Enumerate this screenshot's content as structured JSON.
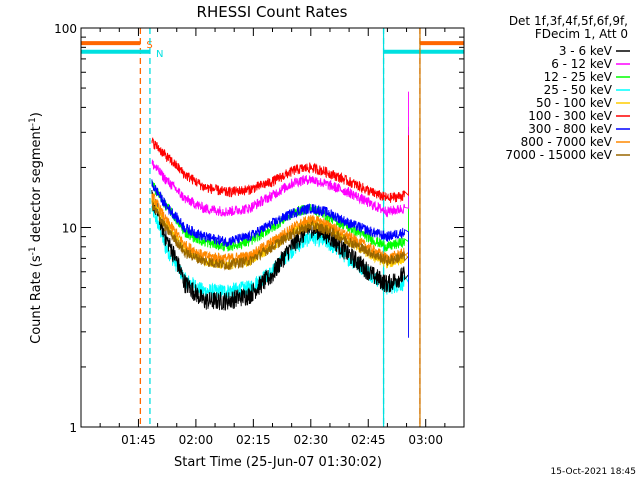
{
  "chart_data": {
    "type": "line",
    "title": "RHESSI Count Rates",
    "xlabel": "Start Time (25-Jun-07 01:30:02)",
    "ylabel_main": "Count Rate (s",
    "ylabel_sup1": "-1",
    "ylabel_mid": " detector segment",
    "ylabel_sup2": "-1",
    "ylabel_end": ")",
    "yscale": "log",
    "ylim": [
      1,
      100
    ],
    "xlim_minutes": [
      0,
      100
    ],
    "x_ticks": [
      {
        "minute": 15,
        "label": "01:45"
      },
      {
        "minute": 30,
        "label": "02:00"
      },
      {
        "minute": 45,
        "label": "02:15"
      },
      {
        "minute": 60,
        "label": "02:30"
      },
      {
        "minute": 75,
        "label": "02:45"
      },
      {
        "minute": 90,
        "label": "03:00"
      }
    ],
    "y_ticks": [
      {
        "value": 1,
        "label": "1"
      },
      {
        "value": 10,
        "label": "10"
      },
      {
        "value": 100,
        "label": "100"
      }
    ],
    "legend_header": [
      "Det 1f,3f,4f,5f,6f,9f,",
      "FDecim 1, Att 0"
    ],
    "legend_position": "right",
    "series": [
      {
        "name": "3 - 6 keV",
        "color": "#000000",
        "x": [
          18.5,
          22,
          27,
          32,
          38,
          44,
          50,
          56,
          60,
          64,
          70,
          76,
          80,
          84.5
        ],
        "values": [
          14.0,
          9.0,
          5.3,
          4.3,
          4.3,
          4.6,
          5.8,
          8.5,
          10.0,
          9.3,
          7.3,
          5.8,
          5.2,
          5.8
        ]
      },
      {
        "name": "6 - 12 keV",
        "color": "#ff00ff",
        "x": [
          18.5,
          22,
          27,
          32,
          38,
          44,
          50,
          56,
          60,
          64,
          70,
          76,
          80,
          84.5
        ],
        "values": [
          21.0,
          17.5,
          14.0,
          12.5,
          12.0,
          12.5,
          14.5,
          17.0,
          17.5,
          16.5,
          15.0,
          13.0,
          12.0,
          12.5
        ]
      },
      {
        "name": "12 - 25 keV",
        "color": "#00ff00",
        "x": [
          18.5,
          22,
          27,
          32,
          38,
          44,
          50,
          56,
          60,
          64,
          70,
          76,
          80,
          84.5
        ],
        "values": [
          16.5,
          13.0,
          9.5,
          8.5,
          8.0,
          8.5,
          10.0,
          12.0,
          12.5,
          11.5,
          10.0,
          8.7,
          8.0,
          8.5
        ]
      },
      {
        "name": "25 - 50 keV",
        "color": "#00ffff",
        "x": [
          18.5,
          22,
          27,
          32,
          38,
          44,
          50,
          56,
          60,
          64,
          70,
          76,
          80,
          84.5
        ],
        "values": [
          12.5,
          8.0,
          5.5,
          4.8,
          4.8,
          5.0,
          6.0,
          8.0,
          9.0,
          8.5,
          7.0,
          5.8,
          5.0,
          5.3
        ]
      },
      {
        "name": "50 - 100 keV",
        "color": "#ffcc00",
        "x": [
          18.5,
          22,
          27,
          32,
          38,
          44,
          50,
          56,
          60,
          64,
          70,
          76,
          80,
          84.5
        ],
        "values": [
          14.0,
          10.5,
          7.8,
          6.8,
          6.5,
          6.8,
          8.0,
          9.8,
          10.5,
          10.0,
          8.5,
          7.2,
          6.6,
          7.0
        ]
      },
      {
        "name": "100 - 300 keV",
        "color": "#ff0000",
        "x": [
          18.5,
          22,
          27,
          32,
          38,
          44,
          50,
          56,
          60,
          64,
          70,
          76,
          80,
          84.5
        ],
        "values": [
          27.0,
          23.0,
          18.5,
          16.0,
          15.0,
          15.5,
          17.0,
          19.5,
          20.0,
          19.0,
          17.0,
          15.0,
          14.0,
          14.5
        ]
      },
      {
        "name": "300 - 800 keV",
        "color": "#0000ff",
        "x": [
          18.5,
          22,
          27,
          32,
          38,
          44,
          50,
          56,
          60,
          64,
          70,
          76,
          80,
          84.5
        ],
        "values": [
          16.5,
          13.0,
          10.0,
          9.0,
          8.5,
          9.0,
          10.5,
          12.0,
          12.5,
          12.0,
          10.5,
          9.5,
          9.0,
          9.5
        ]
      },
      {
        "name": "800 - 7000 keV",
        "color": "#ff8800",
        "x": [
          18.5,
          22,
          27,
          32,
          38,
          44,
          50,
          56,
          60,
          64,
          70,
          76,
          80,
          84.5
        ],
        "values": [
          14.5,
          11.0,
          8.2,
          7.2,
          7.0,
          7.2,
          8.5,
          10.2,
          11.0,
          10.5,
          9.0,
          7.8,
          7.0,
          7.5
        ]
      },
      {
        "name": "7000 - 15000 keV",
        "color": "#996600",
        "x": [
          18.5,
          22,
          27,
          32,
          38,
          44,
          50,
          56,
          60,
          64,
          70,
          76,
          80,
          84.5
        ],
        "values": [
          13.0,
          10.0,
          7.5,
          6.8,
          6.5,
          6.8,
          8.0,
          9.5,
          10.2,
          9.8,
          8.5,
          7.4,
          6.8,
          7.2
        ]
      }
    ],
    "spike_x_minute": 85.5,
    "spike_top_value": 48,
    "attenuator_flags": [
      {
        "label": "S",
        "color": "#ff6600",
        "x_minutes": [
          0,
          15.5,
          88.5,
          100
        ],
        "value": 84
      },
      {
        "label": "N",
        "color": "#00e0e0",
        "x_minutes": [
          0,
          18.0,
          79.0,
          100
        ],
        "value": 76
      }
    ]
  },
  "footer": {
    "timestamp": "15-Oct-2021 18:45"
  }
}
